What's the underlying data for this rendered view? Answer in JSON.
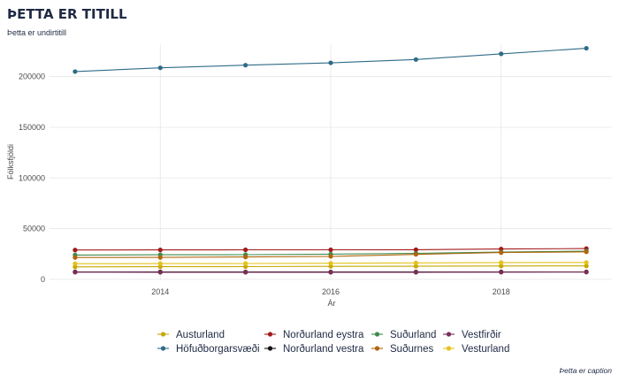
{
  "chart_data": {
    "type": "line",
    "title": "ÞETTA ER TITILL",
    "subtitle": "Þetta er undirtitill",
    "caption": "Þetta er caption",
    "xlabel": "Ár",
    "ylabel": "Fólksfjöldi",
    "x": [
      2013,
      2014,
      2015,
      2016,
      2017,
      2018,
      2019
    ],
    "xticks": [
      2014,
      2016,
      2018
    ],
    "yticks": [
      0,
      50000,
      100000,
      150000,
      200000
    ],
    "ytick_labels": [
      "0",
      "50000",
      "100000",
      "150000",
      "200000"
    ],
    "xtick_labels": [
      "2014",
      "2016",
      "2018"
    ],
    "xlim": [
      2012.7,
      2019.3
    ],
    "ylim": [
      -1000,
      232000
    ],
    "grid": true,
    "legend_position": "bottom",
    "series": [
      {
        "name": "Austurland",
        "color": "#c7a700",
        "values": [
          12300,
          12400,
          12500,
          12800,
          12900,
          13100,
          13200
        ]
      },
      {
        "name": "Höfuðborgarsvæði",
        "color": "#2f6b87",
        "values": [
          205000,
          208700,
          211300,
          213600,
          216900,
          222500,
          228000
        ]
      },
      {
        "name": "Norðurland eystra",
        "color": "#a31a1a",
        "values": [
          28900,
          29000,
          29100,
          29100,
          29200,
          29900,
          30300
        ]
      },
      {
        "name": "Norðurland vestra",
        "color": "#111111",
        "values": [
          7300,
          7300,
          7200,
          7200,
          7200,
          7300,
          7300
        ]
      },
      {
        "name": "Suðurland",
        "color": "#3e8a4d",
        "values": [
          24000,
          24200,
          24300,
          24800,
          25600,
          26900,
          27800
        ]
      },
      {
        "name": "Suðurnes",
        "color": "#b0650a",
        "values": [
          21500,
          21600,
          22000,
          22600,
          24600,
          26400,
          27100
        ]
      },
      {
        "name": "Vestfirðir",
        "color": "#7a2e58",
        "values": [
          7000,
          6900,
          6900,
          6900,
          6900,
          7000,
          7100
        ]
      },
      {
        "name": "Vesturland",
        "color": "#e3c21d",
        "values": [
          15400,
          15500,
          15600,
          15800,
          16200,
          16500,
          16600
        ]
      }
    ]
  }
}
